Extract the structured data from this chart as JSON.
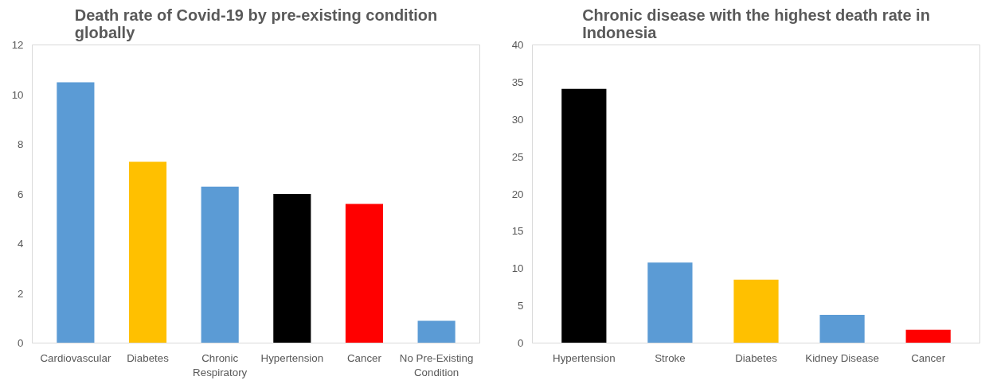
{
  "chart_data": [
    {
      "type": "bar",
      "title": "Death rate of Covid-19 by pre-existing condition globally",
      "categories": [
        "Cardiovascular",
        "Diabetes",
        "Chronic Respiratory",
        "Hypertension",
        "Cancer",
        "No Pre-Existing Condition"
      ],
      "values": [
        10.5,
        7.3,
        6.3,
        6.0,
        5.6,
        0.9
      ],
      "colors": [
        "#5b9bd5",
        "#ffc000",
        "#5b9bd5",
        "#000000",
        "#ff0000",
        "#5b9bd5"
      ],
      "ylim": [
        0,
        12
      ],
      "yticks": [
        0,
        2,
        4,
        6,
        8,
        10,
        12
      ],
      "grid": false
    },
    {
      "type": "bar",
      "title": "Chronic disease with the highest death rate in Indonesia",
      "categories": [
        "Hypertension",
        "Stroke",
        "Diabetes",
        "Kidney Disease",
        "Cancer"
      ],
      "values": [
        34.1,
        10.8,
        8.5,
        3.8,
        1.8
      ],
      "colors": [
        "#000000",
        "#5b9bd5",
        "#ffc000",
        "#5b9bd5",
        "#ff0000"
      ],
      "ylim": [
        0,
        40
      ],
      "yticks": [
        0,
        5,
        10,
        15,
        20,
        25,
        30,
        35,
        40
      ],
      "grid": false
    }
  ]
}
